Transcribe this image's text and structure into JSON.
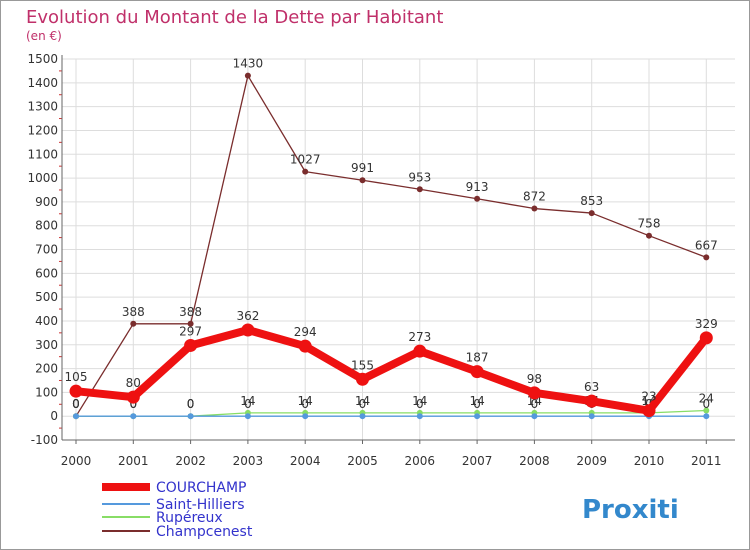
{
  "chart_data": {
    "type": "line",
    "title": "Evolution du Montant de la Dette par Habitant",
    "subtitle": "(en €)",
    "x": [
      "2000",
      "2001",
      "2002",
      "2003",
      "2004",
      "2005",
      "2006",
      "2007",
      "2008",
      "2009",
      "2010",
      "2011"
    ],
    "ylim": [
      -100,
      1500
    ],
    "yticks": [
      -100,
      0,
      100,
      200,
      300,
      400,
      500,
      600,
      700,
      800,
      900,
      1000,
      1100,
      1200,
      1300,
      1400,
      1500
    ],
    "grid": true,
    "series": [
      {
        "name": "Champcenest",
        "color": "#7a2d2d",
        "labeled": true,
        "values": [
          0,
          388,
          388,
          1430,
          1027,
          991,
          953,
          913,
          872,
          853,
          758,
          667
        ]
      },
      {
        "name": "Rupéreux",
        "color": "#88dd66",
        "labeled": true,
        "values": [
          0,
          0,
          0,
          14,
          14,
          14,
          14,
          14,
          14,
          14,
          14,
          24
        ]
      },
      {
        "name": "Saint-Hilliers",
        "color": "#5599dd",
        "labeled": true,
        "values": [
          0,
          0,
          0,
          0,
          0,
          0,
          0,
          0,
          0,
          0,
          0,
          0
        ]
      },
      {
        "name": "COURCHAMP",
        "color": "#ee1111",
        "labeled": true,
        "values": [
          105,
          80,
          297,
          362,
          294,
          155,
          273,
          187,
          98,
          63,
          23,
          329
        ]
      }
    ],
    "legend": [
      "COURCHAMP",
      "Saint-Hilliers",
      "Rupéreux",
      "Champcenest"
    ],
    "legend_position": "bottom-left",
    "brand": "Proxiti"
  }
}
